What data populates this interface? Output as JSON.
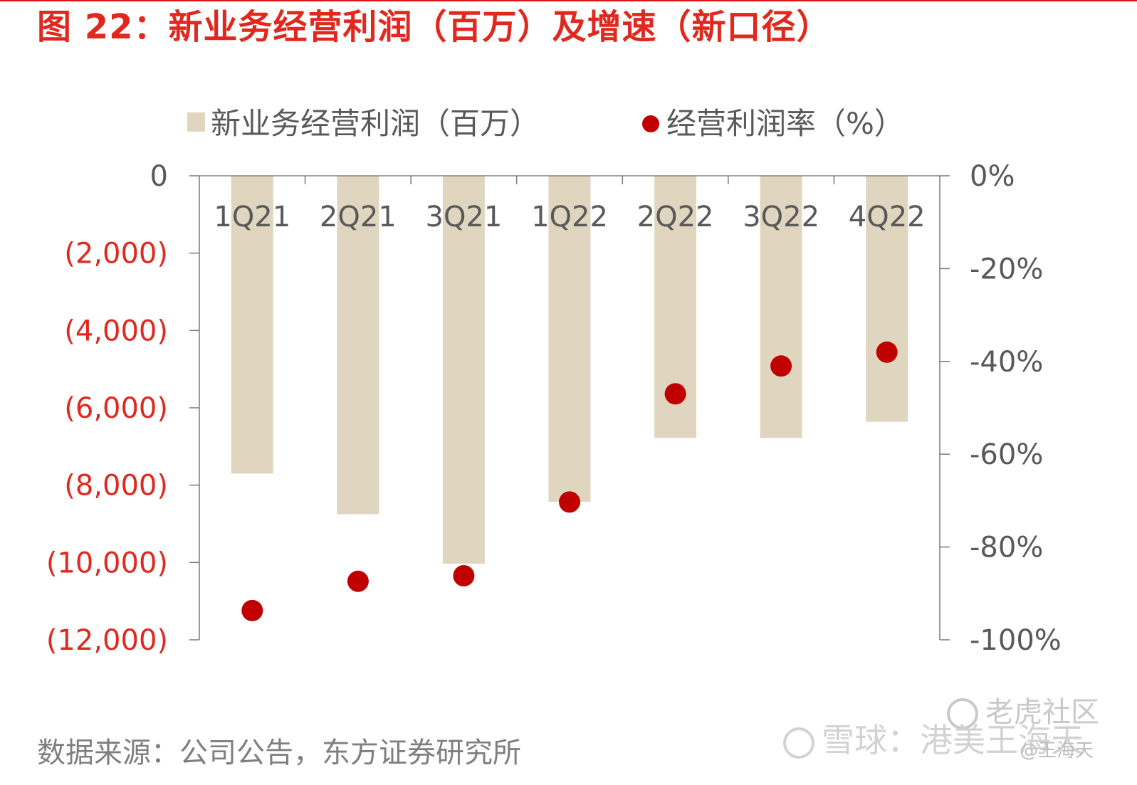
{
  "figure": {
    "title": "图 22：新业务经营利润（百万）及增速（新口径）",
    "source": "数据来源：公司公告，东方证券研究所"
  },
  "watermark": {
    "tiger": "老虎社区",
    "xueqiu": "雪球：港美王海天",
    "user": "@王海天"
  },
  "colors": {
    "accent_red": "#e0281f",
    "bar_fill": "#e0d6bf",
    "dot_fill": "#c00000",
    "axis": "#808080"
  },
  "chart_data": {
    "type": "bar",
    "categories": [
      "1Q21",
      "2Q21",
      "3Q21",
      "1Q22",
      "2Q22",
      "3Q22",
      "4Q22"
    ],
    "series": [
      {
        "name": "新业务经营利润（百万）",
        "kind": "bar",
        "axis": "left",
        "values": [
          -7700,
          -8750,
          -10030,
          -8430,
          -6780,
          -6780,
          -6360
        ]
      },
      {
        "name": "经营利润率（%）",
        "kind": "scatter",
        "axis": "right",
        "values": [
          -93.7,
          -87.4,
          -86.2,
          -70.3,
          -47.0,
          -41.0,
          -38.0
        ]
      }
    ],
    "left_axis": {
      "min": -12000,
      "max": 0,
      "step": 2000,
      "tick_labels": [
        "0",
        "(2,000)",
        "(4,000)",
        "(6,000)",
        "(8,000)",
        "(10,000)",
        "(12,000)"
      ]
    },
    "right_axis": {
      "min": -100,
      "max": 0,
      "step": 20,
      "tick_labels": [
        "0%",
        "-20%",
        "-40%",
        "-60%",
        "-80%",
        "-100%"
      ]
    },
    "legend_position": "top",
    "grid": false
  }
}
